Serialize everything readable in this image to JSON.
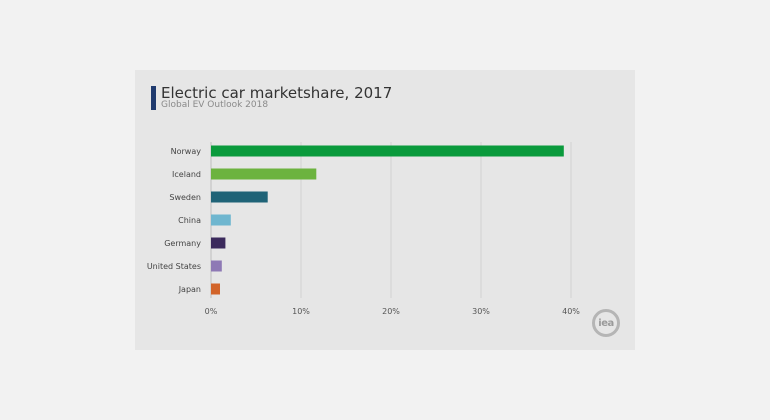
{
  "chart_data": {
    "type": "bar",
    "orientation": "horizontal",
    "title": "Electric car marketshare, 2017",
    "subtitle": "Global EV Outlook 2018",
    "categories": [
      "Norway",
      "Iceland",
      "Sweden",
      "China",
      "Germany",
      "United States",
      "Japan"
    ],
    "values": [
      39.2,
      11.7,
      6.3,
      2.2,
      1.6,
      1.2,
      1.0
    ],
    "colors": [
      "#0a9a3c",
      "#6cb33f",
      "#1f6377",
      "#6fb6cf",
      "#3b2a5c",
      "#8e79b5",
      "#d2642a"
    ],
    "xlim": [
      0,
      40
    ],
    "xticks": [
      0,
      10,
      20,
      30,
      40
    ],
    "xtick_labels": [
      "0%",
      "10%",
      "20%",
      "30%",
      "40%"
    ],
    "grid": "vertical",
    "legend": "none"
  },
  "logo": {
    "text": "iea"
  }
}
